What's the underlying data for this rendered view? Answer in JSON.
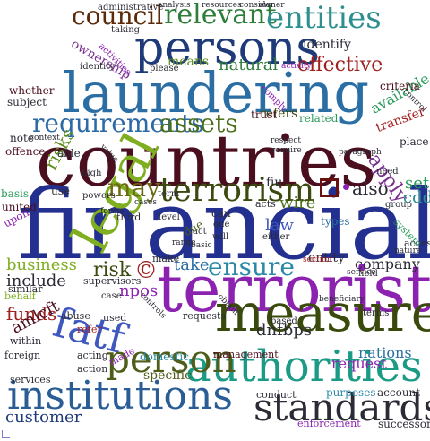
{
  "cloud": {
    "words": [
      {
        "text": "council",
        "color": "#5b2a08"
      },
      {
        "text": "relevant",
        "color": "#2e7d3a"
      },
      {
        "text": "entities",
        "color": "#2f8f8f"
      },
      {
        "text": "persons",
        "color": "#1e3a78"
      },
      {
        "text": "laundering",
        "color": "#2a6ea3"
      },
      {
        "text": "countries",
        "color": "#4a0e1e"
      },
      {
        "text": "financial",
        "color": "#23308f"
      },
      {
        "text": "terrorist",
        "color": "#8b22b0"
      },
      {
        "text": "legal",
        "color": "#7fae21"
      },
      {
        "text": "measures",
        "color": "#3a4a0c"
      },
      {
        "text": "authorities",
        "color": "#1b9a86"
      },
      {
        "text": "institutions",
        "color": "#2a5d95"
      },
      {
        "text": "standards",
        "color": "#2b2b36"
      },
      {
        "text": "fatf",
        "color": "#3f58bf"
      },
      {
        "text": "person",
        "color": "#4e5e1a"
      },
      {
        "text": "terrorism",
        "color": "#3c4a10"
      },
      {
        "text": "may",
        "color": "#6d6a16"
      },
      {
        "text": "requirements",
        "color": "#2c6aa6"
      },
      {
        "text": "assets",
        "color": "#4a6e1a"
      },
      {
        "text": "effective",
        "color": "#a02020"
      },
      {
        "text": "natural",
        "color": "#2e7d3a"
      },
      {
        "text": "means",
        "color": "#5f8f1f"
      },
      {
        "text": "identify",
        "color": "#2b2b36"
      },
      {
        "text": "ownership",
        "color": "#7a3090"
      },
      {
        "text": "ensure",
        "color": "#2a8aa6"
      },
      {
        "text": "risk",
        "color": "#3c4a10"
      },
      {
        "text": "risks",
        "color": "#5f8f1f"
      },
      {
        "text": "apply",
        "color": "#7a3090"
      },
      {
        "text": "also",
        "color": "#2b2b36"
      },
      {
        "text": "funds",
        "color": "#a02020"
      },
      {
        "text": "npos",
        "color": "#8b22b0"
      },
      {
        "text": "dnfbps",
        "color": "#2b2b36"
      },
      {
        "text": "amlcft",
        "color": "#4a0e1e"
      },
      {
        "text": "customer",
        "color": "#1e3a78"
      },
      {
        "text": "law",
        "color": "#3f58bf"
      },
      {
        "text": "wire",
        "color": "#4a6e1a"
      },
      {
        "text": "set",
        "color": "#2b9a5a"
      },
      {
        "text": "cdd",
        "color": "#2f8f8f"
      },
      {
        "text": "take",
        "color": "#2a6ea3"
      },
      {
        "text": "business",
        "color": "#7fae21"
      },
      {
        "text": "include",
        "color": "#2b2b36"
      },
      {
        "text": "company",
        "color": "#2b2b36"
      },
      {
        "text": "request",
        "color": "#8b22b0"
      },
      {
        "text": "nations",
        "color": "#2a6ea3"
      },
      {
        "text": "specific",
        "color": "#4e5e1a"
      },
      {
        "text": "refers",
        "color": "#3c4a10"
      },
      {
        "text": "available",
        "color": "#2b9a5a"
      },
      {
        "text": "transfer",
        "color": "#a02020"
      },
      {
        "text": "criteria",
        "color": "#4a0e1e"
      },
      {
        "text": "whether",
        "color": "#4a0e1e"
      },
      {
        "text": "subject",
        "color": "#2b2b36"
      },
      {
        "text": "note",
        "color": "#2b2b36"
      },
      {
        "text": "offence",
        "color": "#4a0e1e"
      },
      {
        "text": "able",
        "color": "#2b2b36"
      },
      {
        "text": "related",
        "color": "#2b9a5a"
      },
      {
        "text": "trust",
        "color": "#4a0e1e"
      },
      {
        "text": "place",
        "color": "#2b2b36"
      },
      {
        "text": "fiu",
        "color": "#2b2b36"
      },
      {
        "text": "entity",
        "color": "#2b2b36"
      },
      {
        "text": "use",
        "color": "#2b2b36"
      },
      {
        "text": "basis",
        "color": "#2b9a5a"
      },
      {
        "text": "united",
        "color": "#4a0e1e"
      },
      {
        "text": "upon",
        "color": "#8b22b0"
      },
      {
        "text": "types",
        "color": "#2a6ea3"
      },
      {
        "text": "supervisors",
        "color": "#2b2b36"
      },
      {
        "text": "purposes",
        "color": "#2a8aa6"
      },
      {
        "text": "account",
        "color": "#2b2b36"
      },
      {
        "text": "successor",
        "color": "#2b2b36"
      },
      {
        "text": "enforcement",
        "color": "#8b22b0"
      },
      {
        "text": "services",
        "color": "#2b2b36"
      },
      {
        "text": "management",
        "color": "#4a0e1e"
      },
      {
        "text": "conduct",
        "color": "#2b2b36"
      },
      {
        "text": "foreign",
        "color": "#2b2b36"
      },
      {
        "text": "within",
        "color": "#2b2b36"
      },
      {
        "text": "acting",
        "color": "#2b2b36"
      },
      {
        "text": "action",
        "color": "#2b2b36"
      },
      {
        "text": "domestic",
        "color": "#2a8aa6"
      },
      {
        "text": "requests",
        "color": "#2b2b36"
      },
      {
        "text": "used",
        "color": "#2b2b36"
      },
      {
        "text": "behalf",
        "color": "#7fae21"
      },
      {
        "text": "abuse",
        "color": "#2b2b36"
      },
      {
        "text": "similar",
        "color": "#2b2b36"
      },
      {
        "text": "refer",
        "color": "#a02020"
      },
      {
        "text": "made",
        "color": "#8b22b0"
      },
      {
        "text": "make",
        "color": "#2b2b36"
      },
      {
        "text": "access",
        "color": "#2b2b36"
      },
      {
        "text": "system",
        "color": "#2b9a5a"
      },
      {
        "text": "third",
        "color": "#2b2b36"
      },
      {
        "text": "can",
        "color": "#2b2b36"
      },
      {
        "text": "one",
        "color": "#2b2b36"
      },
      {
        "text": "act",
        "color": "#2b2b36"
      },
      {
        "text": "due",
        "color": "#4e5e1a"
      },
      {
        "text": "acts",
        "color": "#2b2b36"
      },
      {
        "text": "level",
        "color": "#2b2b36"
      },
      {
        "text": "term",
        "color": "#2b2b36"
      },
      {
        "text": "held",
        "color": "#2b2b36"
      },
      {
        "text": "terms",
        "color": "#2b2b36"
      },
      {
        "text": "based",
        "color": "#2b2b36"
      },
      {
        "text": "need",
        "color": "#2b2b36"
      },
      {
        "text": "group",
        "color": "#2b2b36"
      },
      {
        "text": "either",
        "color": "#2b2b36"
      },
      {
        "text": "will",
        "color": "#2b2b36"
      },
      {
        "text": "case",
        "color": "#2b2b36"
      },
      {
        "text": "powers",
        "color": "#2b2b36"
      },
      {
        "text": "high",
        "color": "#2b2b36"
      },
      {
        "text": "identity",
        "color": "#2b2b36"
      },
      {
        "text": "please",
        "color": "#2b2b36"
      },
      {
        "text": "taking",
        "color": "#2b2b36"
      },
      {
        "text": "activities",
        "color": "#8b22b0"
      },
      {
        "text": "administrative",
        "color": "#2b2b36"
      },
      {
        "text": "analysis",
        "color": "#2b2b36"
      },
      {
        "text": "resources",
        "color": "#2b2b36"
      },
      {
        "text": "consider",
        "color": "#2b2b36"
      },
      {
        "text": "owner",
        "color": "#2b2b36"
      },
      {
        "text": "activity",
        "color": "#8b22b0"
      },
      {
        "text": "comply",
        "color": "#8b22b0"
      },
      {
        "text": "control",
        "color": "#2b2b36"
      },
      {
        "text": "context",
        "color": "#2b2b36"
      },
      {
        "text": "respect",
        "color": "#2b2b36"
      },
      {
        "text": "paragraph",
        "color": "#2b2b36"
      },
      {
        "text": "nature",
        "color": "#2b2b36"
      },
      {
        "text": "section",
        "color": "#a02020"
      },
      {
        "text": "service",
        "color": "#2b2b36"
      },
      {
        "text": "controls",
        "color": "#2b2b36"
      },
      {
        "text": "beneficiary",
        "color": "#2b2b36"
      },
      {
        "text": "require",
        "color": "#2b2b36"
      },
      {
        "text": "value",
        "color": "#2b2b36"
      },
      {
        "text": "forms",
        "color": "#2b2b36"
      },
      {
        "text": "cases",
        "color": "#2b2b36"
      },
      {
        "text": "basic",
        "color": "#2b2b36"
      },
      {
        "text": "range",
        "color": "#2b2b36"
      },
      {
        "text": "obtain",
        "color": "#2b2b36"
      }
    ],
    "symbols": {
      "copyright": "©"
    }
  }
}
